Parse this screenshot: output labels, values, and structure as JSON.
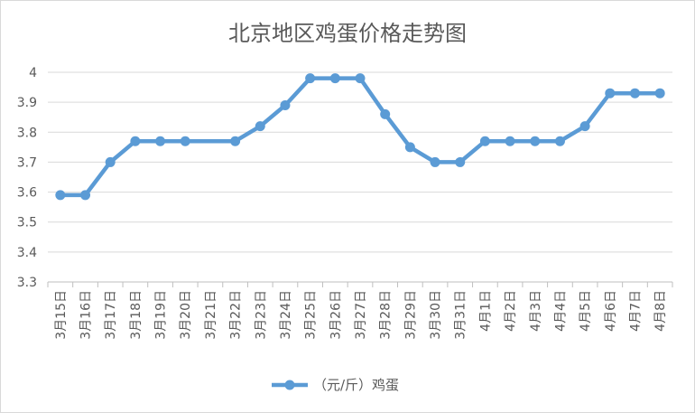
{
  "chart_data": {
    "type": "line",
    "title": "北京地区鸡蛋价格走势图",
    "xlabel": "",
    "ylabel": "",
    "ylim": [
      3.3,
      4.0
    ],
    "yticks": [
      "3.3",
      "3.4",
      "3.5",
      "3.6",
      "3.7",
      "3.8",
      "3.9",
      "4"
    ],
    "grid": true,
    "legend_position": "bottom",
    "categories": [
      "3月15日",
      "3月16日",
      "3月17日",
      "3月18日",
      "3月19日",
      "3月20日",
      "3月21日",
      "3月22日",
      "3月23日",
      "3月24日",
      "3月25日",
      "3月26日",
      "3月27日",
      "3月28日",
      "3月29日",
      "3月30日",
      "3月31日",
      "4月1日",
      "4月2日",
      "4月3日",
      "4月4日",
      "4月5日",
      "4月6日",
      "4月7日",
      "4月8日"
    ],
    "series": [
      {
        "name": "（元/斤）鸡蛋",
        "color": "#5b9bd5",
        "values": [
          3.59,
          3.59,
          3.7,
          3.77,
          3.77,
          3.77,
          null,
          3.77,
          3.82,
          3.89,
          3.98,
          3.98,
          3.98,
          3.86,
          3.75,
          3.7,
          3.7,
          3.77,
          3.77,
          3.77,
          3.77,
          3.82,
          3.93,
          3.93,
          3.93
        ]
      }
    ]
  }
}
